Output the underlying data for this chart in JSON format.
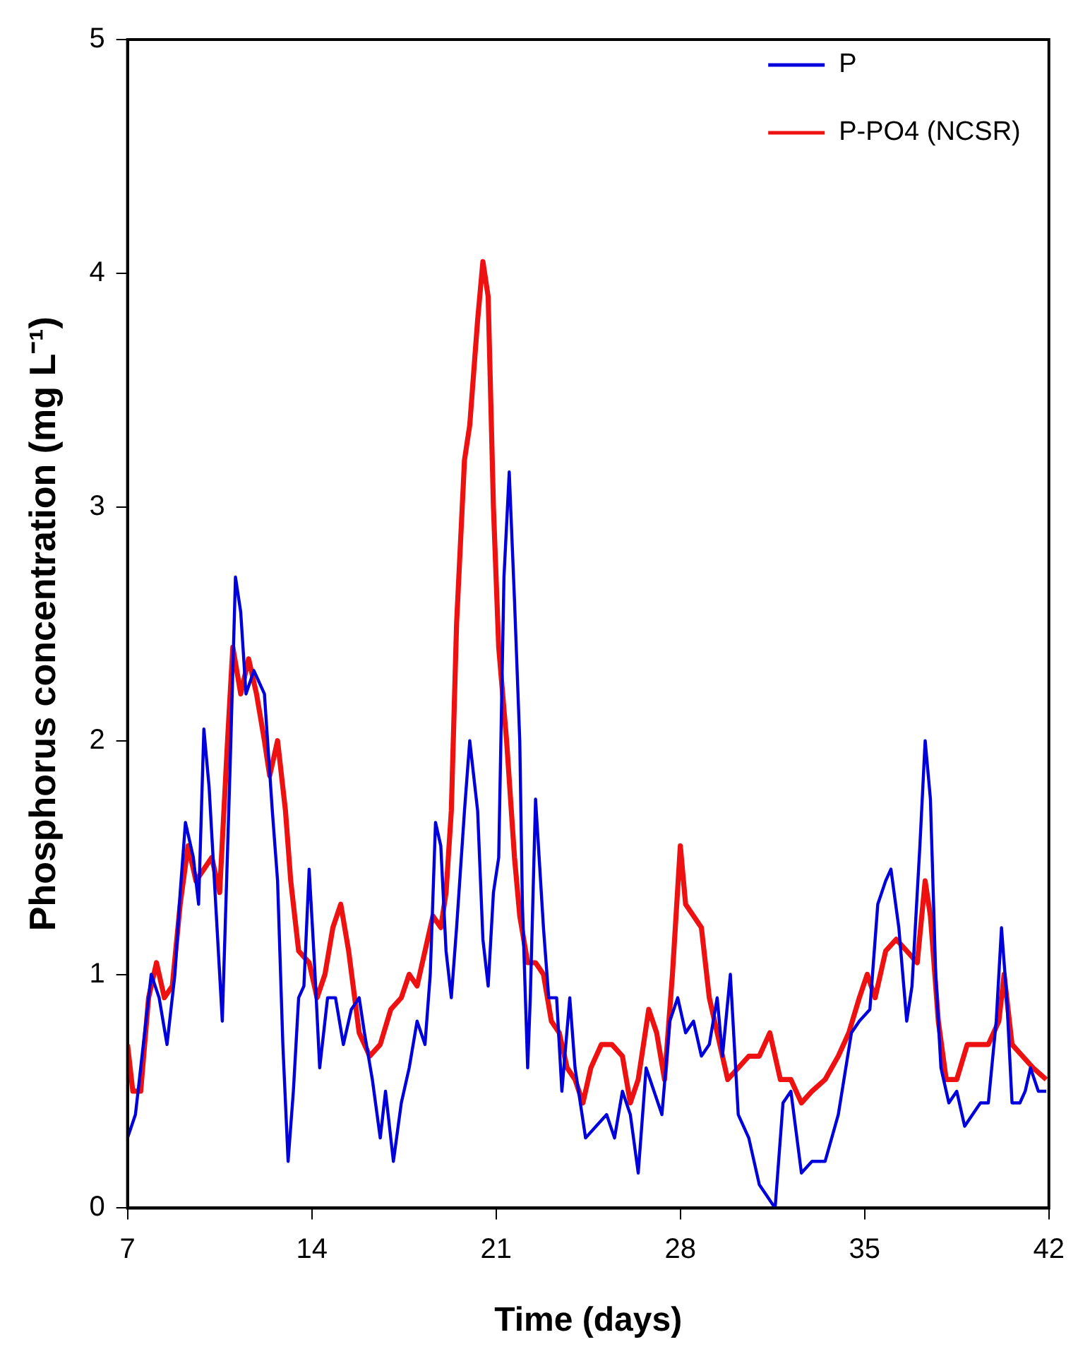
{
  "chart_data": {
    "type": "line",
    "xlabel": "Time (days)",
    "ylabel": "Phosphorus concentration (mg L⁻¹)",
    "xlim": [
      7,
      42
    ],
    "xticks": [
      7,
      14,
      21,
      28,
      35,
      42
    ],
    "ylim": [
      0,
      5
    ],
    "yticks": [
      0,
      1,
      2,
      3,
      4,
      5
    ],
    "grid": false,
    "legend": "top right",
    "series": [
      {
        "name": "P",
        "color": "#0000dd",
        "x": [
          7.0,
          7.3,
          7.6,
          7.9,
          8.2,
          8.5,
          8.8,
          9.0,
          9.2,
          9.5,
          9.7,
          9.9,
          10.1,
          10.4,
          10.6,
          10.9,
          11.1,
          11.3,
          11.5,
          11.8,
          12.2,
          12.5,
          12.7,
          12.9,
          13.1,
          13.3,
          13.5,
          13.7,
          13.9,
          14.1,
          14.3,
          14.6,
          14.9,
          15.2,
          15.5,
          15.8,
          16.0,
          16.3,
          16.6,
          16.8,
          17.1,
          17.4,
          17.7,
          18.0,
          18.3,
          18.5,
          18.7,
          18.9,
          19.1,
          19.3,
          19.5,
          19.8,
          20.0,
          20.3,
          20.5,
          20.7,
          20.9,
          21.1,
          21.3,
          21.5,
          21.7,
          21.9,
          22.0,
          22.2,
          22.3,
          22.5,
          22.8,
          23.0,
          23.3,
          23.5,
          23.8,
          24.0,
          24.4,
          24.8,
          25.2,
          25.5,
          25.8,
          26.1,
          26.4,
          26.7,
          27.0,
          27.3,
          27.6,
          27.9,
          28.2,
          28.5,
          28.8,
          29.1,
          29.4,
          29.6,
          29.9,
          30.2,
          30.6,
          31.0,
          31.3,
          31.6,
          31.9,
          32.2,
          32.6,
          33.0,
          33.5,
          34.0,
          34.5,
          34.8,
          35.2,
          35.5,
          35.8,
          36.0,
          36.3,
          36.6,
          36.8,
          37.1,
          37.3,
          37.5,
          37.7,
          37.9,
          38.2,
          38.5,
          38.8,
          39.1,
          39.4,
          39.7,
          40.0,
          40.2,
          40.4,
          40.6,
          40.9,
          41.1,
          41.3,
          41.6,
          41.9
        ],
        "values": [
          0.3,
          0.4,
          0.7,
          1.0,
          0.9,
          0.7,
          1.0,
          1.35,
          1.65,
          1.5,
          1.3,
          2.05,
          1.8,
          1.2,
          0.8,
          1.9,
          2.7,
          2.55,
          2.2,
          2.3,
          2.2,
          1.7,
          1.4,
          0.7,
          0.2,
          0.5,
          0.9,
          0.95,
          1.45,
          1.05,
          0.6,
          0.9,
          0.9,
          0.7,
          0.85,
          0.9,
          0.75,
          0.55,
          0.3,
          0.5,
          0.2,
          0.45,
          0.6,
          0.8,
          0.7,
          1.0,
          1.65,
          1.55,
          1.1,
          0.9,
          1.2,
          1.7,
          2.0,
          1.7,
          1.15,
          0.95,
          1.35,
          1.5,
          2.7,
          3.15,
          2.6,
          2.0,
          1.3,
          0.6,
          0.9,
          1.75,
          1.2,
          0.9,
          0.9,
          0.5,
          0.9,
          0.6,
          0.3,
          0.35,
          0.4,
          0.3,
          0.5,
          0.4,
          0.15,
          0.6,
          0.5,
          0.4,
          0.8,
          0.9,
          0.75,
          0.8,
          0.65,
          0.7,
          0.9,
          0.65,
          1.0,
          0.4,
          0.3,
          0.1,
          0.05,
          0.0,
          0.45,
          0.5,
          0.15,
          0.2,
          0.2,
          0.4,
          0.75,
          0.8,
          0.85,
          1.3,
          1.4,
          1.45,
          1.2,
          0.8,
          0.95,
          1.55,
          2.0,
          1.75,
          1.0,
          0.6,
          0.45,
          0.5,
          0.35,
          0.4,
          0.45,
          0.45,
          0.8,
          1.2,
          0.9,
          0.45,
          0.45,
          0.5,
          0.6,
          0.5,
          0.5
        ]
      },
      {
        "name": "P-PO4 (NCSR)",
        "color": "#ee1111",
        "x": [
          7.0,
          7.2,
          7.5,
          7.8,
          8.1,
          8.4,
          8.7,
          9.0,
          9.3,
          9.6,
          9.9,
          10.2,
          10.5,
          10.8,
          11.0,
          11.3,
          11.6,
          11.9,
          12.2,
          12.4,
          12.7,
          13.0,
          13.2,
          13.5,
          13.9,
          14.2,
          14.5,
          14.8,
          15.1,
          15.4,
          15.8,
          16.2,
          16.6,
          17.0,
          17.4,
          17.7,
          18.0,
          18.3,
          18.6,
          18.9,
          19.1,
          19.3,
          19.5,
          19.8,
          20.0,
          20.3,
          20.5,
          20.7,
          20.9,
          21.1,
          21.4,
          21.7,
          21.9,
          22.2,
          22.5,
          22.8,
          23.1,
          23.4,
          23.7,
          24.0,
          24.3,
          24.6,
          25.0,
          25.4,
          25.8,
          26.1,
          26.4,
          26.8,
          27.1,
          27.4,
          27.7,
          28.0,
          28.2,
          28.5,
          28.8,
          29.1,
          29.4,
          29.8,
          30.2,
          30.6,
          31.0,
          31.4,
          31.8,
          32.2,
          32.6,
          33.0,
          33.5,
          34.0,
          34.4,
          34.8,
          35.1,
          35.4,
          35.8,
          36.2,
          36.6,
          37.0,
          37.3,
          37.5,
          37.8,
          38.1,
          38.5,
          38.9,
          39.3,
          39.7,
          40.1,
          40.3,
          40.6,
          41.0,
          41.4,
          41.9
        ],
        "values": [
          0.7,
          0.5,
          0.5,
          0.9,
          1.05,
          0.9,
          0.95,
          1.3,
          1.55,
          1.4,
          1.45,
          1.5,
          1.35,
          2.0,
          2.4,
          2.2,
          2.35,
          2.2,
          2.0,
          1.85,
          2.0,
          1.7,
          1.4,
          1.1,
          1.05,
          0.9,
          1.0,
          1.2,
          1.3,
          1.1,
          0.75,
          0.65,
          0.7,
          0.85,
          0.9,
          1.0,
          0.95,
          1.1,
          1.25,
          1.2,
          1.35,
          1.7,
          2.5,
          3.2,
          3.35,
          3.8,
          4.05,
          3.9,
          3.0,
          2.4,
          2.0,
          1.5,
          1.25,
          1.05,
          1.05,
          1.0,
          0.8,
          0.75,
          0.6,
          0.55,
          0.45,
          0.6,
          0.7,
          0.7,
          0.65,
          0.45,
          0.55,
          0.85,
          0.75,
          0.55,
          1.0,
          1.55,
          1.3,
          1.25,
          1.2,
          0.9,
          0.75,
          0.55,
          0.6,
          0.65,
          0.65,
          0.75,
          0.55,
          0.55,
          0.45,
          0.5,
          0.55,
          0.65,
          0.75,
          0.9,
          1.0,
          0.9,
          1.1,
          1.15,
          1.1,
          1.05,
          1.4,
          1.25,
          0.8,
          0.55,
          0.55,
          0.7,
          0.7,
          0.7,
          0.8,
          1.0,
          0.7,
          0.65,
          0.6,
          0.55
        ]
      }
    ]
  }
}
